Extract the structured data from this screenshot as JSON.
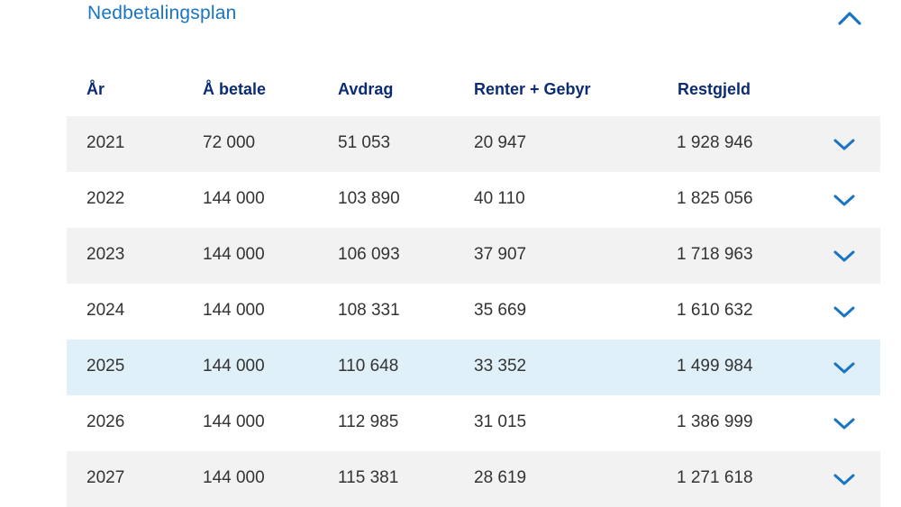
{
  "section": {
    "title": "Nedbetalingsplan",
    "toggle_icon": "chevron-up-icon"
  },
  "colors": {
    "accent": "#1a74c4",
    "header_text": "#0b2c74",
    "row_alt": "#f2f2f2",
    "row_highlight": "#e0f0f8",
    "body_text": "#333333"
  },
  "table": {
    "headers": [
      "År",
      "Å betale",
      "Avdrag",
      "Renter + Gebyr",
      "Restgjeld"
    ],
    "rows": [
      {
        "year": "2021",
        "to_pay": "72 000",
        "installment": "51 053",
        "interest_fee": "20 947",
        "remaining": "1 928 946"
      },
      {
        "year": "2022",
        "to_pay": "144 000",
        "installment": "103 890",
        "interest_fee": "40 110",
        "remaining": "1 825 056"
      },
      {
        "year": "2023",
        "to_pay": "144 000",
        "installment": "106 093",
        "interest_fee": "37 907",
        "remaining": "1 718 963"
      },
      {
        "year": "2024",
        "to_pay": "144 000",
        "installment": "108 331",
        "interest_fee": "35 669",
        "remaining": "1 610 632"
      },
      {
        "year": "2025",
        "to_pay": "144 000",
        "installment": "110 648",
        "interest_fee": "33 352",
        "remaining": "1 499 984"
      },
      {
        "year": "2026",
        "to_pay": "144 000",
        "installment": "112 985",
        "interest_fee": "31 015",
        "remaining": "1 386 999"
      },
      {
        "year": "2027",
        "to_pay": "144 000",
        "installment": "115 381",
        "interest_fee": "28 619",
        "remaining": "1 271 618"
      }
    ],
    "row_icon": "chevron-down-icon",
    "highlighted_row": "2025"
  }
}
